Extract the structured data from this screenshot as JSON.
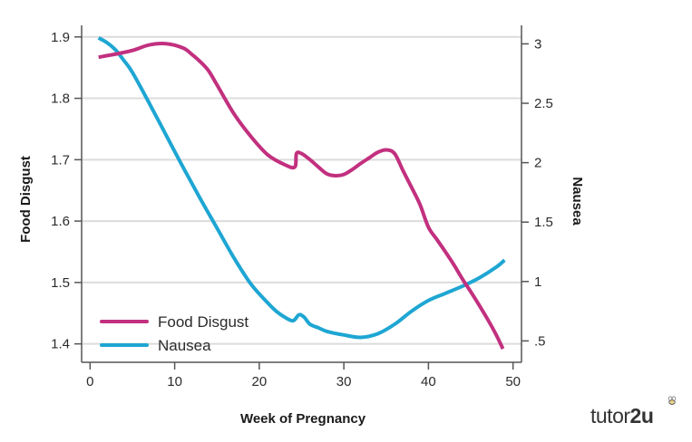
{
  "chart_data": {
    "type": "line",
    "title": "",
    "xlabel": "Week of Pregnancy",
    "ylabel_left": "Food Disgust",
    "ylabel_right": "Nausea",
    "xlim": [
      -1,
      51
    ],
    "ylim_left": [
      1.37,
      1.91
    ],
    "ylim_right": [
      0.32,
      3.11
    ],
    "x_ticks": [
      "0",
      "10",
      "20",
      "30",
      "40",
      "50"
    ],
    "y_ticks_left": [
      "1.4",
      "1.5",
      "1.6",
      "1.7",
      "1.8",
      "1.9"
    ],
    "y_ticks_right": [
      ".5",
      "1",
      "1.5",
      "2",
      "2.5",
      "3"
    ],
    "grid": "horizontal",
    "legend_position": "bottom-left",
    "series": [
      {
        "name": "Food Disgust",
        "axis": "left",
        "color": "#c2307f",
        "x": [
          1,
          3,
          5,
          7,
          9,
          11,
          12,
          13,
          14,
          15,
          17,
          19,
          21,
          23,
          24.2,
          24.4,
          25,
          26,
          27,
          28,
          29,
          30,
          31,
          32,
          33,
          34,
          35,
          36,
          37,
          38,
          39,
          40,
          41,
          42,
          43,
          44,
          45,
          46,
          47,
          48,
          48.8
        ],
        "y": [
          1.867,
          1.872,
          1.878,
          1.887,
          1.889,
          1.882,
          1.872,
          1.86,
          1.845,
          1.822,
          1.775,
          1.738,
          1.708,
          1.692,
          1.688,
          1.71,
          1.71,
          1.7,
          1.688,
          1.677,
          1.674,
          1.676,
          1.684,
          1.694,
          1.703,
          1.712,
          1.716,
          1.71,
          1.682,
          1.655,
          1.627,
          1.59,
          1.57,
          1.55,
          1.529,
          1.506,
          1.485,
          1.463,
          1.44,
          1.415,
          1.392
        ]
      },
      {
        "name": "Nausea",
        "axis": "right",
        "color": "#1ea6d3",
        "x": [
          1,
          2,
          3,
          4,
          5,
          7,
          9,
          11,
          13,
          15,
          17,
          19,
          21,
          22,
          23,
          24,
          24.7,
          25.3,
          26,
          27,
          28,
          30,
          32,
          34,
          36,
          38,
          40,
          42,
          44,
          46,
          48,
          49
        ],
        "y": [
          3.05,
          3.01,
          2.95,
          2.86,
          2.76,
          2.5,
          2.23,
          1.96,
          1.7,
          1.45,
          1.2,
          0.98,
          0.82,
          0.75,
          0.7,
          0.67,
          0.72,
          0.7,
          0.64,
          0.61,
          0.58,
          0.55,
          0.53,
          0.56,
          0.64,
          0.75,
          0.84,
          0.9,
          0.96,
          1.03,
          1.12,
          1.18
        ]
      }
    ]
  },
  "branding": {
    "logo_text_regular": "tutor",
    "logo_text_bold": "2u"
  }
}
